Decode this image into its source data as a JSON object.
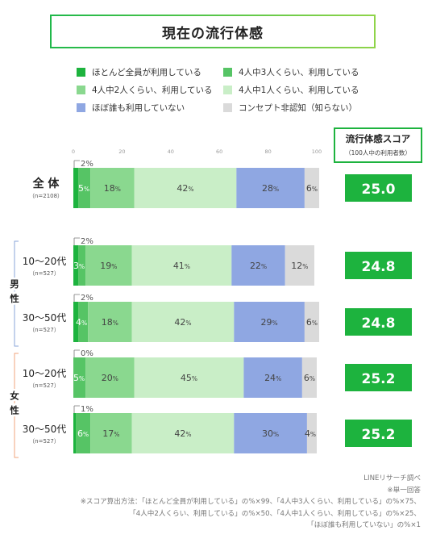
{
  "title": "現在の流行体感",
  "legend": [
    {
      "label": "ほとんど全員が利用している",
      "color": "#1db33e"
    },
    {
      "label": "4人中3人くらい、利用している",
      "color": "#56c465"
    },
    {
      "label": "4人中2人くらい、利用している",
      "color": "#8ad88f"
    },
    {
      "label": "4人中1人くらい、利用している",
      "color": "#c9eec7"
    },
    {
      "label": "ほぼ誰も利用していない",
      "color": "#8fa7e2"
    },
    {
      "label": "コンセプト非認知（知らない）",
      "color": "#dadada"
    }
  ],
  "score_header": {
    "title": "流行体感スコア",
    "sub": "（100人中の利用者数）"
  },
  "chart_data": {
    "type": "bar",
    "orientation": "horizontal",
    "stacked": true,
    "xlim": [
      0,
      100
    ],
    "x_ticks": [
      "0",
      "20",
      "40",
      "60",
      "80",
      "100"
    ],
    "value_suffix": "%",
    "groups": [
      {
        "label": "男性",
        "color": "#8aa6d8"
      },
      {
        "label": "女性",
        "color": "#f0a57c"
      }
    ],
    "categories": [
      {
        "label": "全 体",
        "n": "（n=2108）",
        "group": ""
      },
      {
        "label": "10～20代",
        "n": "（n=527）",
        "group": "男性"
      },
      {
        "label": "30～50代",
        "n": "（n=527）",
        "group": "男性"
      },
      {
        "label": "10～20代",
        "n": "（n=527）",
        "group": "女性"
      },
      {
        "label": "30～50代",
        "n": "（n=527）",
        "group": "女性"
      }
    ],
    "series": [
      {
        "name": "ほとんど全員が利用している",
        "values": [
          2,
          2,
          2,
          0,
          1
        ]
      },
      {
        "name": "4人中3人くらい、利用している",
        "values": [
          5,
          3,
          4,
          5,
          6
        ]
      },
      {
        "name": "4人中2人くらい、利用している",
        "values": [
          18,
          19,
          18,
          20,
          17
        ]
      },
      {
        "name": "4人中1人くらい、利用している",
        "values": [
          42,
          41,
          42,
          45,
          42
        ]
      },
      {
        "name": "ほぼ誰も利用していない",
        "values": [
          28,
          22,
          29,
          24,
          30
        ]
      },
      {
        "name": "コンセプト非認知（知らない）",
        "values": [
          6,
          12,
          6,
          6,
          4
        ]
      }
    ],
    "scores": [
      "25.0",
      "24.8",
      "24.8",
      "25.2",
      "25.2"
    ]
  },
  "notes": [
    "LINEリサーチ調べ",
    "※単一回答",
    "※スコア算出方法：「ほとんど全員が利用している」の%×99、「4人中3人くらい、利用している」の%×75、",
    "「4人中2人くらい、利用している」の%×50、「4人中1人くらい、利用している」の%×25、",
    "「ほぼ誰も利用していない」の%×1"
  ]
}
